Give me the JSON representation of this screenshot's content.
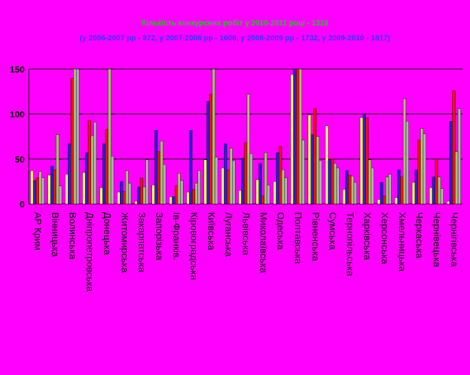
{
  "chart_data": {
    "type": "bar",
    "title": "Кількість конкурсних робіт у 2010-2011 році - 1318",
    "subtitle": "(у 2006-2007 рр - 872, у 2007-2008 рр - 1608, у 2008-2009 рр - 1732, у 2009-2010 - 1817)",
    "xlabel": "",
    "ylabel": "",
    "ylim": [
      0,
      150
    ],
    "yticks": [
      "0",
      "50",
      "100",
      "150"
    ],
    "categories": [
      "АР Крим",
      "Вінницька",
      "Волинська",
      "Дніпропетровська",
      "Донецька",
      "Житомирська",
      "Закарпатська",
      "Запорізька",
      "Ів-Франків.",
      "Кіровоградська",
      "Київська",
      "Луганська",
      "Львівська",
      "Миколаївська",
      "Одеська",
      "Полтавська",
      "Рівненська",
      "Сумська",
      "Тернопільська",
      "Харківська",
      "Херсонська",
      "Хмельницька",
      "Черкаська",
      "Чернівецька",
      "Чернігівська"
    ],
    "series": [
      {
        "color": "#ffff66",
        "values": [
          37,
          32,
          33,
          35,
          18,
          13,
          3,
          21,
          8,
          13,
          49,
          40,
          15,
          27,
          25,
          144,
          99,
          87,
          16,
          96,
          5,
          7,
          24,
          18,
          3
        ]
      },
      {
        "color": "#2222dd",
        "values": [
          26,
          42,
          67,
          57,
          67,
          25,
          19,
          82,
          8,
          82,
          114,
          67,
          51,
          45,
          57,
          153,
          77,
          49,
          37,
          99,
          24,
          38,
          38,
          30,
          92
        ]
      },
      {
        "color": "#ee1111",
        "values": [
          29,
          38,
          140,
          93,
          83,
          14,
          29,
          58,
          20,
          16,
          122,
          38,
          68,
          9,
          64,
          153,
          106,
          50,
          32,
          96,
          9,
          30,
          71,
          50,
          126
        ]
      },
      {
        "color": "#a8c070",
        "values": [
          36,
          77,
          153,
          76,
          153,
          37,
          19,
          70,
          34,
          23,
          153,
          62,
          122,
          57,
          38,
          153,
          75,
          45,
          31,
          49,
          30,
          117,
          84,
          30,
          58
        ]
      },
      {
        "color": "#b0b0b0",
        "values": [
          29,
          20,
          153,
          91,
          53,
          23,
          49,
          44,
          26,
          37,
          52,
          48,
          56,
          21,
          29,
          71,
          48,
          40,
          24,
          40,
          33,
          92,
          78,
          17,
          106
        ]
      }
    ]
  }
}
